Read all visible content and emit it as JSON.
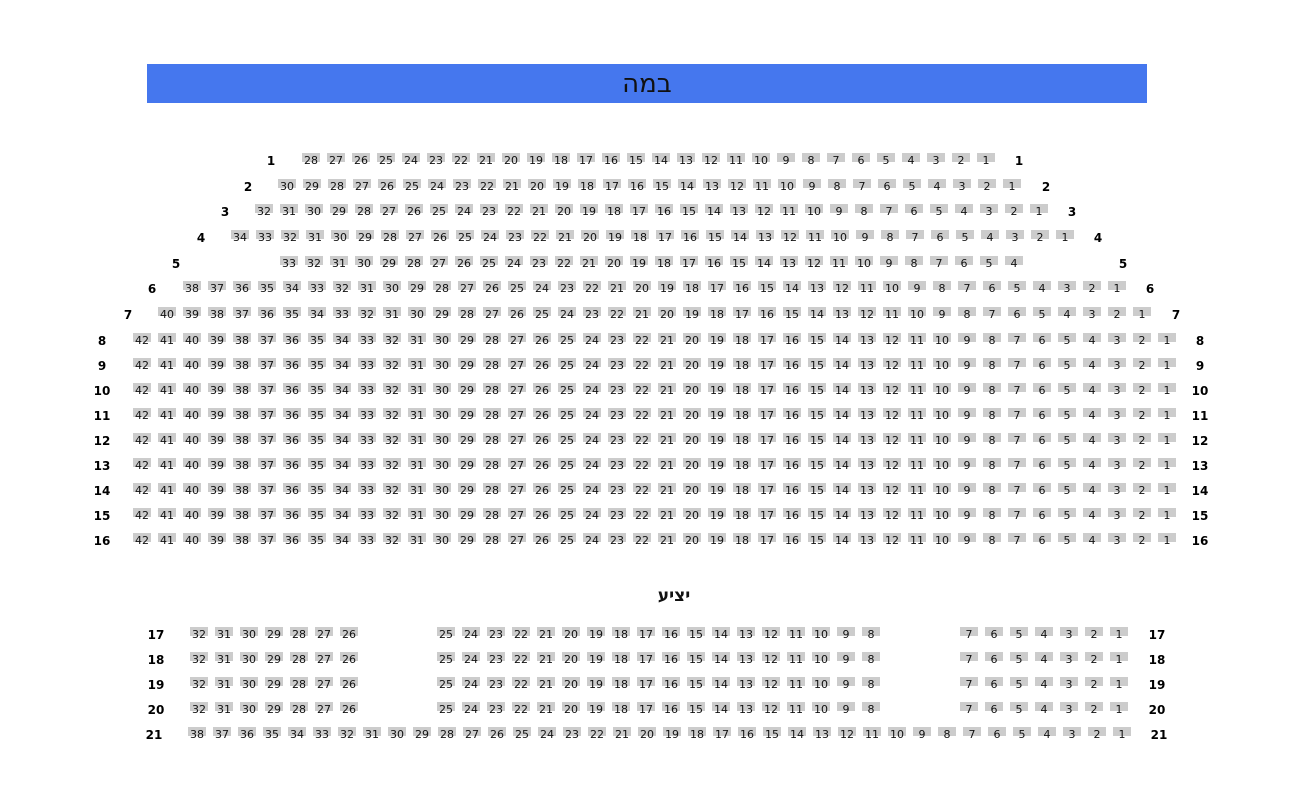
{
  "stage": {
    "label": "במה",
    "color": "#4577ee"
  },
  "seat_color": "#cccccc",
  "balcony": {
    "title": "יציע"
  },
  "rows": [
    {
      "label": "1",
      "seat_ranges": [
        [
          28,
          1
        ]
      ]
    },
    {
      "label": "2",
      "seat_ranges": [
        [
          30,
          1
        ]
      ]
    },
    {
      "label": "3",
      "seat_ranges": [
        [
          32,
          1
        ]
      ]
    },
    {
      "label": "4",
      "seat_ranges": [
        [
          34,
          1
        ]
      ]
    },
    {
      "label": "5",
      "seat_ranges": [
        [
          33,
          4
        ]
      ]
    },
    {
      "label": "6",
      "seat_ranges": [
        [
          38,
          1
        ]
      ]
    },
    {
      "label": "7",
      "seat_ranges": [
        [
          40,
          1
        ]
      ]
    },
    {
      "label": "8",
      "seat_ranges": [
        [
          42,
          1
        ]
      ]
    },
    {
      "label": "9",
      "seat_ranges": [
        [
          42,
          1
        ]
      ]
    },
    {
      "label": "10",
      "seat_ranges": [
        [
          42,
          1
        ]
      ]
    },
    {
      "label": "11",
      "seat_ranges": [
        [
          42,
          1
        ]
      ]
    },
    {
      "label": "12",
      "seat_ranges": [
        [
          42,
          1
        ]
      ]
    },
    {
      "label": "13",
      "seat_ranges": [
        [
          42,
          1
        ]
      ]
    },
    {
      "label": "14",
      "seat_ranges": [
        [
          42,
          1
        ]
      ]
    },
    {
      "label": "15",
      "seat_ranges": [
        [
          42,
          1
        ]
      ]
    },
    {
      "label": "16",
      "seat_ranges": [
        [
          42,
          1
        ]
      ]
    },
    {
      "label": "17",
      "seat_ranges": [
        [
          32,
          26
        ],
        [
          25,
          8
        ],
        [
          7,
          1
        ]
      ]
    },
    {
      "label": "18",
      "seat_ranges": [
        [
          32,
          26
        ],
        [
          25,
          8
        ],
        [
          7,
          1
        ]
      ]
    },
    {
      "label": "19",
      "seat_ranges": [
        [
          32,
          26
        ],
        [
          25,
          8
        ],
        [
          7,
          1
        ]
      ]
    },
    {
      "label": "20",
      "seat_ranges": [
        [
          32,
          26
        ],
        [
          25,
          8
        ],
        [
          7,
          1
        ]
      ]
    },
    {
      "label": "21",
      "seat_ranges": [
        [
          38,
          1
        ]
      ]
    }
  ]
}
